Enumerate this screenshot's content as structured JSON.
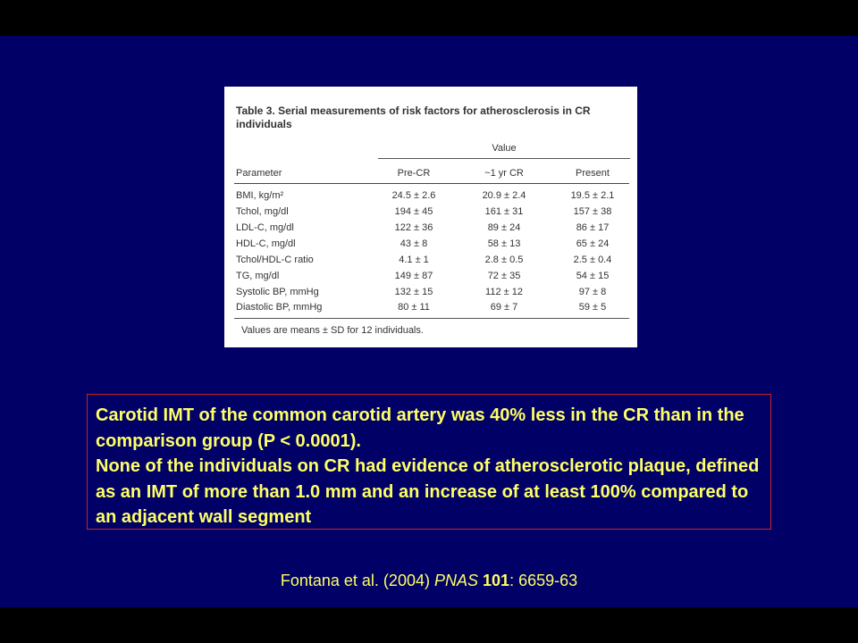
{
  "table": {
    "title": "Table 3. Serial measurements of risk factors for atherosclerosis in CR individuals",
    "group_header": "Value",
    "columns": [
      "Parameter",
      "Pre-CR",
      "~1 yr CR",
      "Present"
    ],
    "rows": [
      [
        "BMI, kg/m²",
        "24.5 ± 2.6",
        "20.9 ± 2.4",
        "19.5 ± 2.1"
      ],
      [
        "Tchol, mg/dl",
        "194 ± 45",
        "161 ± 31",
        "157 ± 38"
      ],
      [
        "LDL-C, mg/dl",
        "122 ± 36",
        "89 ± 24",
        "86 ± 17"
      ],
      [
        "HDL-C, mg/dl",
        "43 ± 8",
        "58 ± 13",
        "65 ± 24"
      ],
      [
        "Tchol/HDL-C ratio",
        "4.1 ± 1",
        "2.8 ± 0.5",
        "2.5 ± 0.4"
      ],
      [
        "TG, mg/dl",
        "149 ± 87",
        "72 ± 35",
        "54 ± 15"
      ],
      [
        "Systolic BP, mmHg",
        "132 ± 15",
        "112 ± 12",
        "97 ± 8"
      ],
      [
        "Diastolic BP, mmHg",
        "80 ± 11",
        "69 ± 7",
        "59 ± 5"
      ]
    ],
    "footnote": "Values are means ± SD for 12 individuals."
  },
  "note": {
    "text": "Carotid IMT of the common carotid artery was 40% less in the CR than in the comparison group (P < 0.0001).\n None of the individuals on CR had evidence of atherosclerotic plaque, defined as an IMT of more than 1.0 mm and an increase of at least 100% compared to an adjacent wall segment"
  },
  "citation": {
    "authors": "Fontana et al. (2004) ",
    "journal": "PNAS",
    "volume": "101",
    "pages": ": 6659-63"
  },
  "colors": {
    "background": "#000066",
    "text_highlight": "#ffff66",
    "box_border": "#cc2222"
  }
}
